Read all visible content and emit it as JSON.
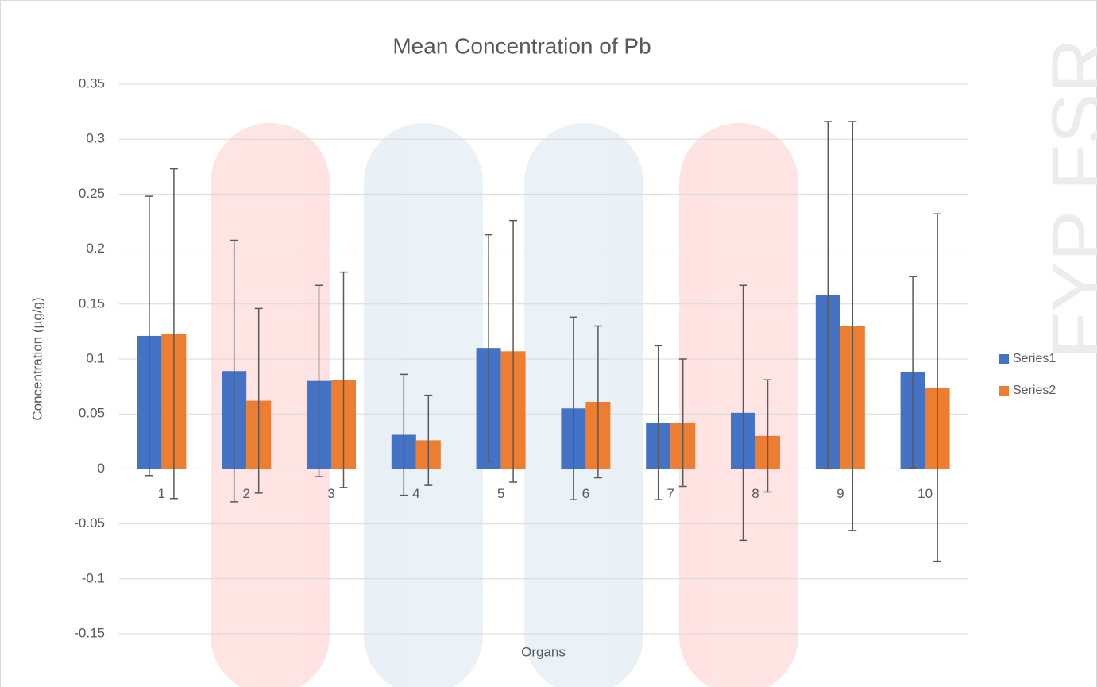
{
  "chart_data": {
    "type": "bar",
    "title": "Mean Concentration of Pb",
    "x_label": "Organs",
    "y_label": "Concentration (µg/g)",
    "watermark": "FYP FSR",
    "categories": [
      "1",
      "2",
      "3",
      "4",
      "5",
      "6",
      "7",
      "8",
      "9",
      "10"
    ],
    "series": [
      {
        "name": "Series1",
        "color": "#4472c4",
        "values": [
          0.121,
          0.089,
          0.08,
          0.031,
          0.11,
          0.055,
          0.042,
          0.051,
          0.158,
          0.088
        ],
        "errors": [
          0.127,
          0.119,
          0.087,
          0.055,
          0.103,
          0.083,
          0.07,
          0.116,
          0.158,
          0.087
        ]
      },
      {
        "name": "Series2",
        "color": "#ed7d31",
        "values": [
          0.123,
          0.062,
          0.081,
          0.026,
          0.107,
          0.061,
          0.042,
          0.03,
          0.13,
          0.074
        ],
        "errors": [
          0.15,
          0.084,
          0.098,
          0.041,
          0.119,
          0.069,
          0.058,
          0.051,
          0.186,
          0.158
        ]
      }
    ],
    "ylim": [
      -0.15,
      0.35
    ],
    "yticks": [
      -0.15,
      -0.1,
      -0.05,
      0,
      0.05,
      0.1,
      0.15,
      0.2,
      0.25,
      0.3,
      0.35
    ],
    "grid": true,
    "legend": "right"
  }
}
